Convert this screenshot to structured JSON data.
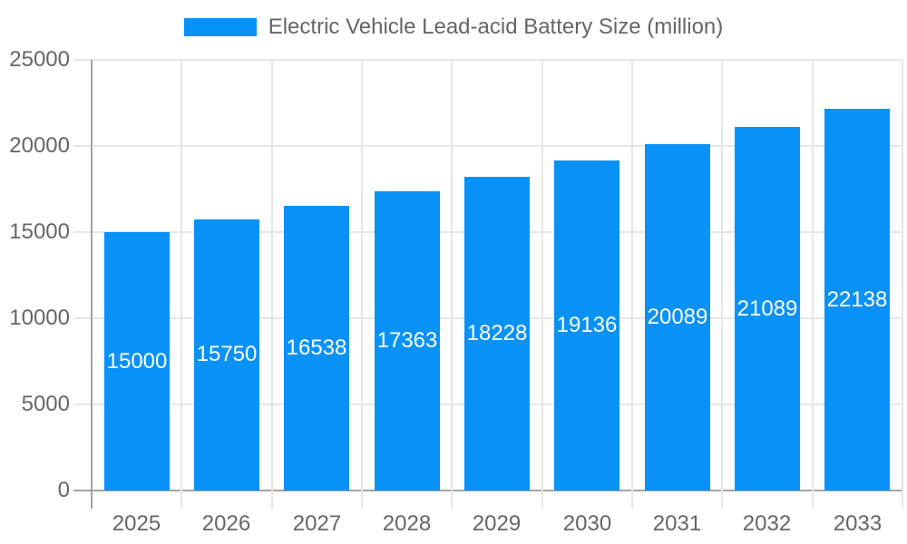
{
  "chart_data": {
    "type": "bar",
    "title": "Electric Vehicle Lead-acid Battery Size (million)",
    "legend": {
      "position": "top",
      "entries": [
        "Electric Vehicle Lead-acid Battery Size (million)"
      ]
    },
    "categories": [
      "2025",
      "2026",
      "2027",
      "2028",
      "2029",
      "2030",
      "2031",
      "2032",
      "2033"
    ],
    "values": [
      15000,
      15750,
      16538,
      17363,
      18228,
      19136,
      20089,
      21089,
      22138
    ],
    "bar_labels": [
      "15000",
      "15750",
      "16538",
      "17363",
      "18228",
      "19136",
      "20089",
      "21089",
      "22138"
    ],
    "xlabel": "",
    "ylabel": "",
    "ylim": [
      0,
      25000
    ],
    "ytick_step": 5000,
    "ytick_labels": [
      "0",
      "5000",
      "10000",
      "15000",
      "20000",
      "25000"
    ],
    "grid": true,
    "colors": {
      "bar": "#0892f8",
      "bar_label_text": "#ffffff",
      "axis_text": "#666666",
      "legend_text": "#666666",
      "grid_line": "#e6e6e6",
      "axis_line": "#a3a3a3",
      "background": "#ffffff"
    }
  }
}
